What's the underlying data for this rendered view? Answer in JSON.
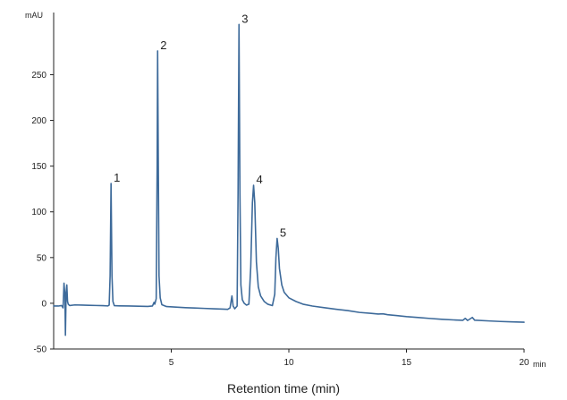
{
  "chart_data": {
    "type": "line",
    "xlabel": "Retention time (min)",
    "x_unit": "min",
    "y_unit": "mAU",
    "xlim": [
      0,
      20
    ],
    "ylim": [
      -50,
      318
    ],
    "x_ticks": [
      5,
      10,
      15,
      20
    ],
    "y_ticks": [
      -50,
      0,
      50,
      100,
      150,
      200,
      250
    ],
    "grid": false,
    "colors": {
      "trace": "#3d6a9a",
      "axis": "#222222"
    },
    "peaks": [
      {
        "label": "1",
        "x": 2.44,
        "y": 131
      },
      {
        "label": "2",
        "x": 4.42,
        "y": 276
      },
      {
        "label": "3",
        "x": 7.88,
        "y": 305
      },
      {
        "label": "4",
        "x": 8.5,
        "y": 129
      },
      {
        "label": "5",
        "x": 9.5,
        "y": 71
      }
    ],
    "series": [
      {
        "points": [
          [
            0,
            -3
          ],
          [
            0.2,
            -3
          ],
          [
            0.34,
            -2.5
          ],
          [
            0.4,
            -5
          ],
          [
            0.44,
            22
          ],
          [
            0.48,
            8
          ],
          [
            0.5,
            -35
          ],
          [
            0.53,
            12
          ],
          [
            0.56,
            20
          ],
          [
            0.59,
            2
          ],
          [
            0.62,
            -1
          ],
          [
            0.68,
            -2.5
          ],
          [
            0.9,
            -1.8
          ],
          [
            1.2,
            -2.0
          ],
          [
            1.5,
            -2.2
          ],
          [
            1.8,
            -2.4
          ],
          [
            2.1,
            -2.6
          ],
          [
            2.3,
            -2.9
          ],
          [
            2.36,
            -2.0
          ],
          [
            2.4,
            30
          ],
          [
            2.44,
            131
          ],
          [
            2.48,
            30
          ],
          [
            2.52,
            2
          ],
          [
            2.58,
            -2.6
          ],
          [
            2.8,
            -2.8
          ],
          [
            3.2,
            -3.0
          ],
          [
            3.6,
            -3.2
          ],
          [
            4.0,
            -3.4
          ],
          [
            4.2,
            -3.0
          ],
          [
            4.27,
            1
          ],
          [
            4.3,
            -1
          ],
          [
            4.36,
            5
          ],
          [
            4.4,
            150
          ],
          [
            4.42,
            276
          ],
          [
            4.45,
            150
          ],
          [
            4.48,
            30
          ],
          [
            4.53,
            6
          ],
          [
            4.6,
            -1.5
          ],
          [
            4.8,
            -3.6
          ],
          [
            5.2,
            -4.2
          ],
          [
            5.6,
            -4.8
          ],
          [
            6.0,
            -5.2
          ],
          [
            6.4,
            -5.6
          ],
          [
            6.8,
            -6.0
          ],
          [
            7.2,
            -6.4
          ],
          [
            7.4,
            -6.6
          ],
          [
            7.5,
            -5
          ],
          [
            7.58,
            8
          ],
          [
            7.63,
            -3
          ],
          [
            7.7,
            -6
          ],
          [
            7.8,
            -3
          ],
          [
            7.84,
            120
          ],
          [
            7.88,
            305
          ],
          [
            7.92,
            120
          ],
          [
            7.96,
            20
          ],
          [
            8.02,
            4
          ],
          [
            8.1,
            0
          ],
          [
            8.2,
            -2
          ],
          [
            8.3,
            -1
          ],
          [
            8.38,
            40
          ],
          [
            8.45,
            110
          ],
          [
            8.5,
            129
          ],
          [
            8.55,
            110
          ],
          [
            8.62,
            45
          ],
          [
            8.7,
            18
          ],
          [
            8.8,
            8
          ],
          [
            8.95,
            2
          ],
          [
            9.1,
            -1
          ],
          [
            9.3,
            -2.5
          ],
          [
            9.4,
            10
          ],
          [
            9.45,
            50
          ],
          [
            9.5,
            71
          ],
          [
            9.55,
            60
          ],
          [
            9.6,
            38
          ],
          [
            9.7,
            20
          ],
          [
            9.8,
            12
          ],
          [
            10.0,
            6
          ],
          [
            10.3,
            2
          ],
          [
            10.6,
            -1
          ],
          [
            11.0,
            -3
          ],
          [
            11.5,
            -4.8
          ],
          [
            12.0,
            -6.5
          ],
          [
            12.5,
            -8.0
          ],
          [
            13.0,
            -10.0
          ],
          [
            13.5,
            -11.0
          ],
          [
            13.8,
            -11.8
          ],
          [
            14.0,
            -11.5
          ],
          [
            14.2,
            -12.5
          ],
          [
            14.6,
            -13.5
          ],
          [
            15.0,
            -14.6
          ],
          [
            15.5,
            -15.6
          ],
          [
            16.0,
            -16.6
          ],
          [
            16.5,
            -17.5
          ],
          [
            17.0,
            -18.2
          ],
          [
            17.4,
            -18.6
          ],
          [
            17.5,
            -16.5
          ],
          [
            17.6,
            -18.8
          ],
          [
            17.8,
            -15.5
          ],
          [
            17.9,
            -18.5
          ],
          [
            18.5,
            -19.3
          ],
          [
            19.0,
            -19.9
          ],
          [
            19.5,
            -20.3
          ],
          [
            20.0,
            -20.7
          ]
        ]
      }
    ]
  }
}
